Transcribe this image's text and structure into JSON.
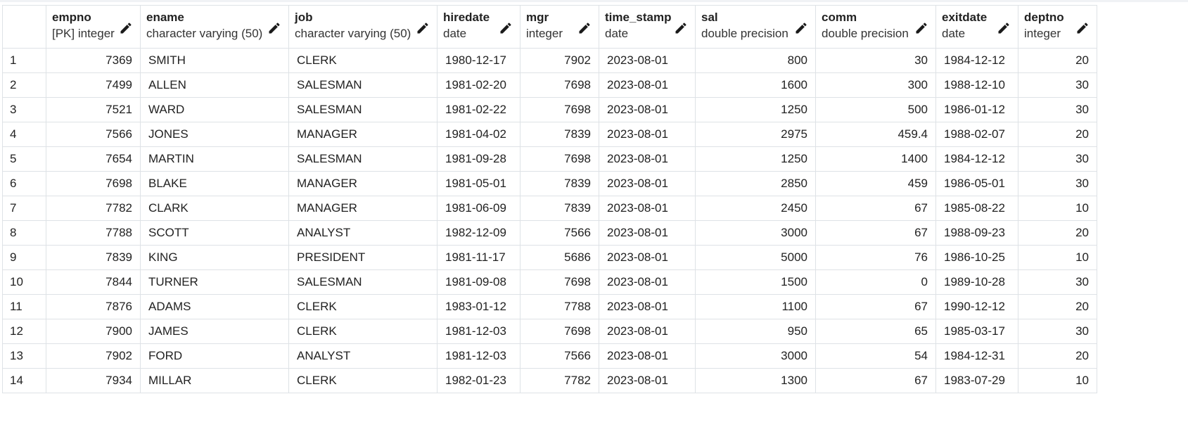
{
  "grid": {
    "columns": [
      {
        "name": "empno",
        "type": "[PK] integer",
        "align": "num"
      },
      {
        "name": "ename",
        "type": "character varying (50)",
        "align": "txt"
      },
      {
        "name": "job",
        "type": "character varying (50)",
        "align": "txt"
      },
      {
        "name": "hiredate",
        "type": "date",
        "align": "date"
      },
      {
        "name": "mgr",
        "type": "integer",
        "align": "num"
      },
      {
        "name": "time_stamp",
        "type": "date",
        "align": "date"
      },
      {
        "name": "sal",
        "type": "double precision",
        "align": "num"
      },
      {
        "name": "comm",
        "type": "double precision",
        "align": "num"
      },
      {
        "name": "exitdate",
        "type": "date",
        "align": "date"
      },
      {
        "name": "deptno",
        "type": "integer",
        "align": "num"
      }
    ],
    "rows": [
      {
        "n": "1",
        "cells": [
          "7369",
          "SMITH",
          "CLERK",
          "1980-12-17",
          "7902",
          "2023-08-01",
          "800",
          "30",
          "1984-12-12",
          "20"
        ]
      },
      {
        "n": "2",
        "cells": [
          "7499",
          "ALLEN",
          "SALESMAN",
          "1981-02-20",
          "7698",
          "2023-08-01",
          "1600",
          "300",
          "1988-12-10",
          "30"
        ]
      },
      {
        "n": "3",
        "cells": [
          "7521",
          "WARD",
          "SALESMAN",
          "1981-02-22",
          "7698",
          "2023-08-01",
          "1250",
          "500",
          "1986-01-12",
          "30"
        ]
      },
      {
        "n": "4",
        "cells": [
          "7566",
          "JONES",
          "MANAGER",
          "1981-04-02",
          "7839",
          "2023-08-01",
          "2975",
          "459.4",
          "1988-02-07",
          "20"
        ]
      },
      {
        "n": "5",
        "cells": [
          "7654",
          "MARTIN",
          "SALESMAN",
          "1981-09-28",
          "7698",
          "2023-08-01",
          "1250",
          "1400",
          "1984-12-12",
          "30"
        ]
      },
      {
        "n": "6",
        "cells": [
          "7698",
          "BLAKE",
          "MANAGER",
          "1981-05-01",
          "7839",
          "2023-08-01",
          "2850",
          "459",
          "1986-05-01",
          "30"
        ]
      },
      {
        "n": "7",
        "cells": [
          "7782",
          "CLARK",
          "MANAGER",
          "1981-06-09",
          "7839",
          "2023-08-01",
          "2450",
          "67",
          "1985-08-22",
          "10"
        ]
      },
      {
        "n": "8",
        "cells": [
          "7788",
          "SCOTT",
          "ANALYST",
          "1982-12-09",
          "7566",
          "2023-08-01",
          "3000",
          "67",
          "1988-09-23",
          "20"
        ]
      },
      {
        "n": "9",
        "cells": [
          "7839",
          "KING",
          "PRESIDENT",
          "1981-11-17",
          "5686",
          "2023-08-01",
          "5000",
          "76",
          "1986-10-25",
          "10"
        ]
      },
      {
        "n": "10",
        "cells": [
          "7844",
          "TURNER",
          "SALESMAN",
          "1981-09-08",
          "7698",
          "2023-08-01",
          "1500",
          "0",
          "1989-10-28",
          "30"
        ]
      },
      {
        "n": "11",
        "cells": [
          "7876",
          "ADAMS",
          "CLERK",
          "1983-01-12",
          "7788",
          "2023-08-01",
          "1100",
          "67",
          "1990-12-12",
          "20"
        ]
      },
      {
        "n": "12",
        "cells": [
          "7900",
          "JAMES",
          "CLERK",
          "1981-12-03",
          "7698",
          "2023-08-01",
          "950",
          "65",
          "1985-03-17",
          "30"
        ]
      },
      {
        "n": "13",
        "cells": [
          "7902",
          "FORD",
          "ANALYST",
          "1981-12-03",
          "7566",
          "2023-08-01",
          "3000",
          "54",
          "1984-12-31",
          "20"
        ]
      },
      {
        "n": "14",
        "cells": [
          "7934",
          "MILLAR",
          "CLERK",
          "1982-01-23",
          "7782",
          "2023-08-01",
          "1300",
          "67",
          "1983-07-29",
          "10"
        ]
      }
    ],
    "edit_icon": "pencil-icon",
    "colors": {
      "border": "#dee2e6",
      "text": "#222222",
      "icon": "#1a1a1a"
    }
  }
}
